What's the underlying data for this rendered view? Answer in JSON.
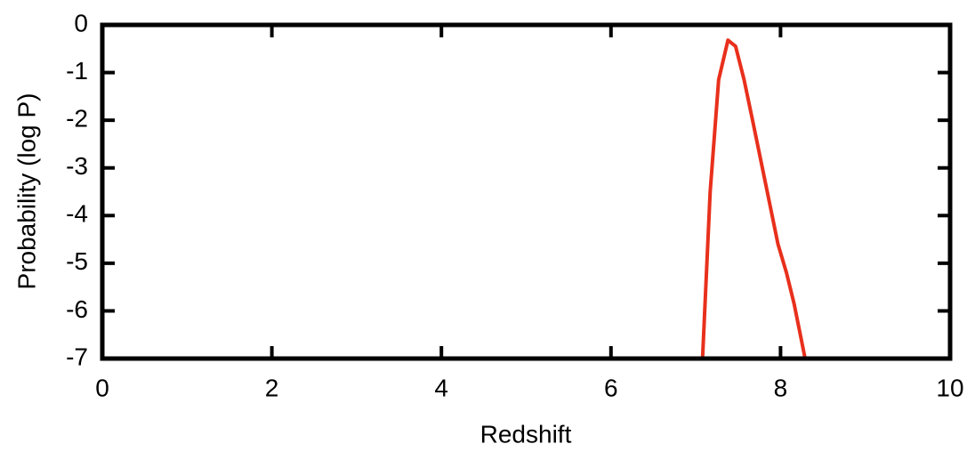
{
  "chart_data": {
    "type": "line",
    "x_label": "Redshift",
    "y_label": "Probability (log P)",
    "xlim": [
      0,
      10
    ],
    "xticks": [
      0,
      2,
      4,
      6,
      8,
      10
    ],
    "ylim": [
      -7,
      0
    ],
    "yticks": [
      0,
      -1,
      -2,
      -3,
      -4,
      -5,
      -6,
      -7
    ],
    "grid": false,
    "series": [
      {
        "color": "#e8301c",
        "x": [
          7.08,
          7.17,
          7.27,
          7.38,
          7.47,
          7.57,
          7.67,
          7.78,
          7.97,
          8.07,
          8.16,
          8.29
        ],
        "values": [
          -7,
          -3.5,
          -1.15,
          -0.32,
          -0.45,
          -1.15,
          -2.0,
          -2.95,
          -4.6,
          -5.2,
          -5.85,
          -7
        ]
      }
    ]
  }
}
